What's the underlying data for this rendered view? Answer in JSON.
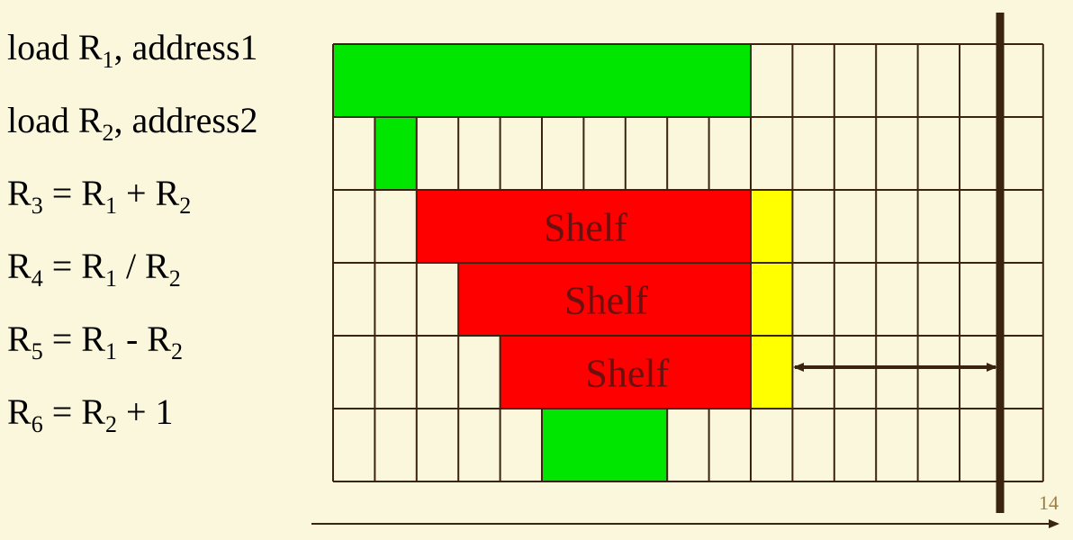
{
  "instructions": [
    {
      "parts": [
        "load R",
        "1",
        ", address1"
      ]
    },
    {
      "parts": [
        "load R",
        "2",
        ", address2"
      ]
    },
    {
      "parts": [
        "R",
        "3",
        " = R",
        "1",
        " + R",
        "2"
      ]
    },
    {
      "parts": [
        "R",
        "4",
        " = R",
        "1",
        " / R",
        "2"
      ]
    },
    {
      "parts": [
        "R",
        "5",
        " = R",
        "1",
        " - R",
        "2"
      ]
    },
    {
      "parts": [
        "R",
        "6",
        " = R",
        "2",
        " + 1"
      ]
    }
  ],
  "grid": {
    "rows": 6,
    "cols": 17
  },
  "bars": [
    {
      "row": 0,
      "start": 0,
      "end": 10,
      "color": "#00E600"
    },
    {
      "row": 1,
      "start": 1,
      "end": 2,
      "color": "#00E600"
    },
    {
      "row": 2,
      "start": 2,
      "end": 10,
      "color": "#FF0000",
      "label": "Shelf"
    },
    {
      "row": 2,
      "start": 10,
      "end": 11,
      "color": "#FFFF00"
    },
    {
      "row": 3,
      "start": 3,
      "end": 10,
      "color": "#FF0000",
      "label": "Shelf"
    },
    {
      "row": 3,
      "start": 10,
      "end": 11,
      "color": "#FFFF00"
    },
    {
      "row": 4,
      "start": 4,
      "end": 10,
      "color": "#FF0000",
      "label": "Shelf"
    },
    {
      "row": 4,
      "start": 10,
      "end": 11,
      "color": "#FFFF00"
    },
    {
      "row": 5,
      "start": 5,
      "end": 8,
      "color": "#00E600"
    }
  ],
  "colors": {
    "background": "#FBF7DC",
    "grid": "#3A2310",
    "deadline": "#3A2310",
    "label": "#6B0F0F",
    "page_number": "#9C7C44"
  },
  "page_number": "14"
}
